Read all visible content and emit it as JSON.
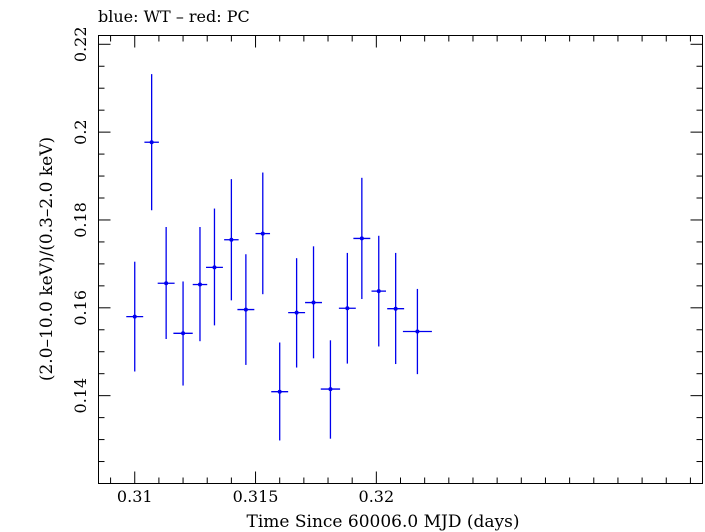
{
  "chart_data": {
    "type": "scatter",
    "title": "blue: WT – red: PC",
    "xlabel": "Time Since 60006.0 MJD (days)",
    "ylabel": "(2.0–10.0 keV)/(0.3–2.0 keV)",
    "xlim": [
      0.3085,
      0.3335
    ],
    "ylim": [
      0.12,
      0.222
    ],
    "x_ticks": [
      0.31,
      0.315,
      0.32
    ],
    "x_tick_labels": [
      "0.31",
      "0.315",
      "0.32"
    ],
    "y_ticks": [
      0.14,
      0.16,
      0.18,
      0.2,
      0.22
    ],
    "y_tick_labels": [
      "0.14",
      "0.16",
      "0.18",
      "0.2",
      "0.22"
    ],
    "grid": false,
    "series": [
      {
        "color": "#0000ee",
        "points": [
          {
            "x": 0.31,
            "xerr": 0.00035,
            "y": 0.158,
            "ylo": 0.1455,
            "yhi": 0.1705
          },
          {
            "x": 0.3107,
            "xerr": 0.0003,
            "y": 0.1977,
            "ylo": 0.1822,
            "yhi": 0.2132
          },
          {
            "x": 0.3113,
            "xerr": 0.00035,
            "y": 0.1656,
            "ylo": 0.1529,
            "yhi": 0.1784
          },
          {
            "x": 0.312,
            "xerr": 0.0004,
            "y": 0.1542,
            "ylo": 0.1423,
            "yhi": 0.166
          },
          {
            "x": 0.3127,
            "xerr": 0.0003,
            "y": 0.1653,
            "ylo": 0.1524,
            "yhi": 0.1784
          },
          {
            "x": 0.3133,
            "xerr": 0.00035,
            "y": 0.1692,
            "ylo": 0.156,
            "yhi": 0.1826
          },
          {
            "x": 0.314,
            "xerr": 0.0003,
            "y": 0.1755,
            "ylo": 0.1617,
            "yhi": 0.1893
          },
          {
            "x": 0.3146,
            "xerr": 0.00035,
            "y": 0.1596,
            "ylo": 0.147,
            "yhi": 0.1722
          },
          {
            "x": 0.3153,
            "xerr": 0.0003,
            "y": 0.1769,
            "ylo": 0.1631,
            "yhi": 0.1908
          },
          {
            "x": 0.316,
            "xerr": 0.00035,
            "y": 0.1409,
            "ylo": 0.1298,
            "yhi": 0.1521
          },
          {
            "x": 0.3167,
            "xerr": 0.00035,
            "y": 0.1589,
            "ylo": 0.1464,
            "yhi": 0.1713
          },
          {
            "x": 0.3174,
            "xerr": 0.00035,
            "y": 0.1612,
            "ylo": 0.1485,
            "yhi": 0.174
          },
          {
            "x": 0.3181,
            "xerr": 0.0004,
            "y": 0.1415,
            "ylo": 0.1302,
            "yhi": 0.1526
          },
          {
            "x": 0.3188,
            "xerr": 0.00035,
            "y": 0.1599,
            "ylo": 0.1473,
            "yhi": 0.1725
          },
          {
            "x": 0.3194,
            "xerr": 0.00035,
            "y": 0.1758,
            "ylo": 0.162,
            "yhi": 0.1896
          },
          {
            "x": 0.3201,
            "xerr": 0.0003,
            "y": 0.1638,
            "ylo": 0.1512,
            "yhi": 0.1764
          },
          {
            "x": 0.3208,
            "xerr": 0.00035,
            "y": 0.1598,
            "ylo": 0.1472,
            "yhi": 0.1725
          },
          {
            "x": 0.3217,
            "xerr": 0.0006,
            "y": 0.1546,
            "ylo": 0.1449,
            "yhi": 0.1643
          }
        ]
      }
    ]
  }
}
